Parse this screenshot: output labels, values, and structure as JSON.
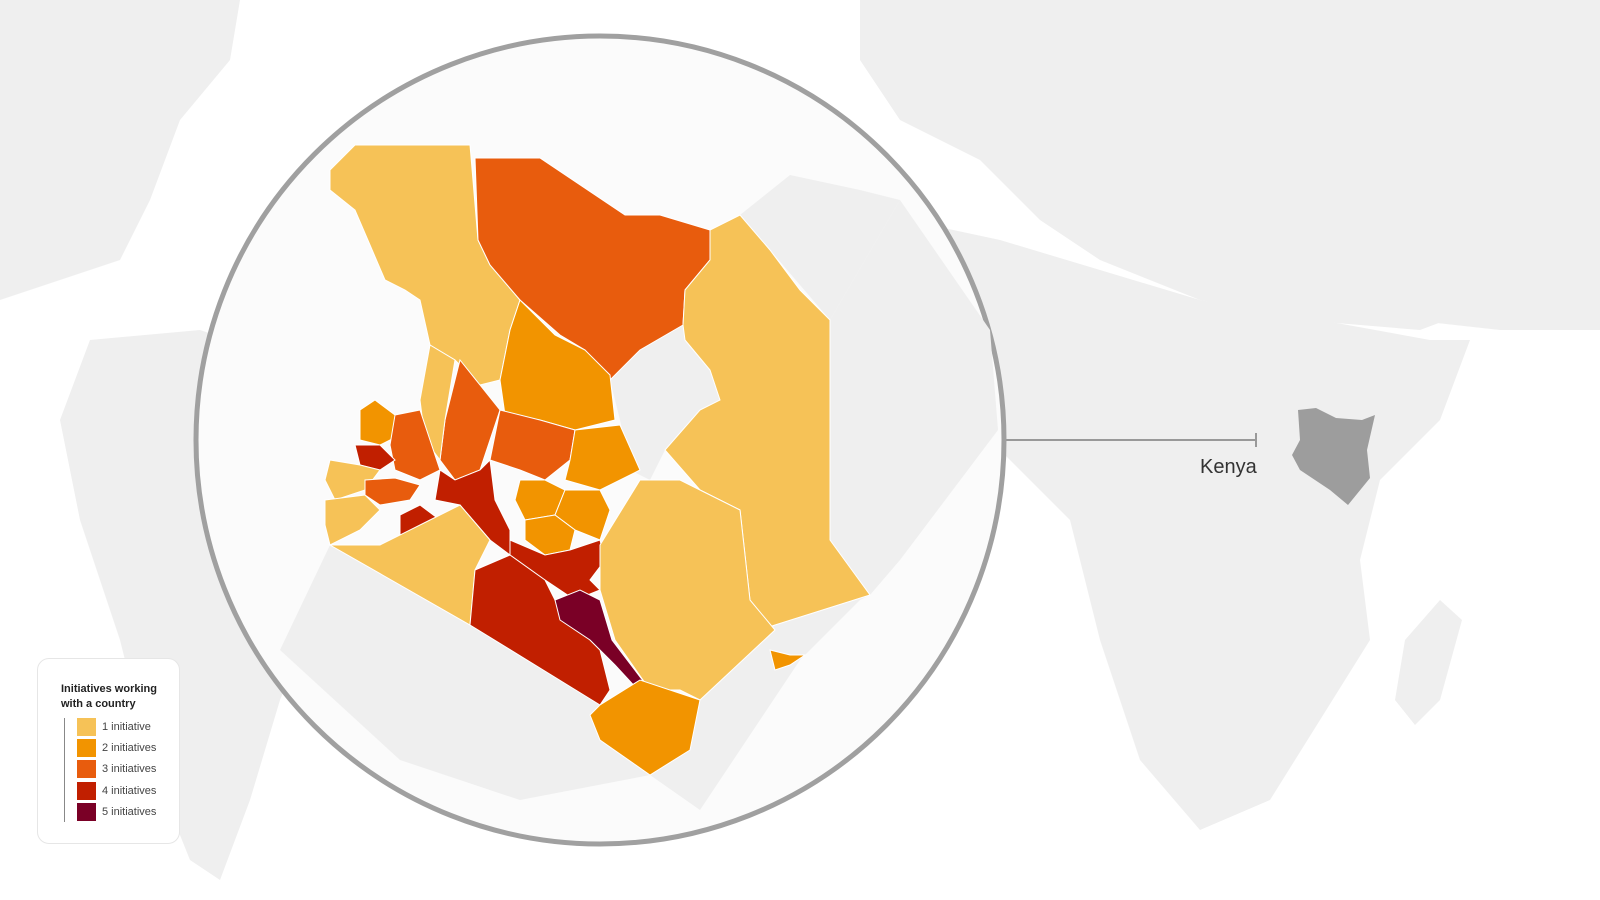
{
  "legend": {
    "title": "Initiatives working with a country",
    "items": [
      {
        "label": "1 initiative",
        "color": "#f6c257"
      },
      {
        "label": "2 initiatives",
        "color": "#f29400"
      },
      {
        "label": "3 initiatives",
        "color": "#e85c0d"
      },
      {
        "label": "4 initiatives",
        "color": "#c11f00"
      },
      {
        "label": "5 initiatives",
        "color": "#7a0026"
      }
    ]
  },
  "country_label": "Kenya",
  "colors": {
    "land": "#efefef",
    "highlight_country": "#9d9d9d",
    "circle_stroke": "#a0a0a0",
    "callout_line": "#999999"
  }
}
